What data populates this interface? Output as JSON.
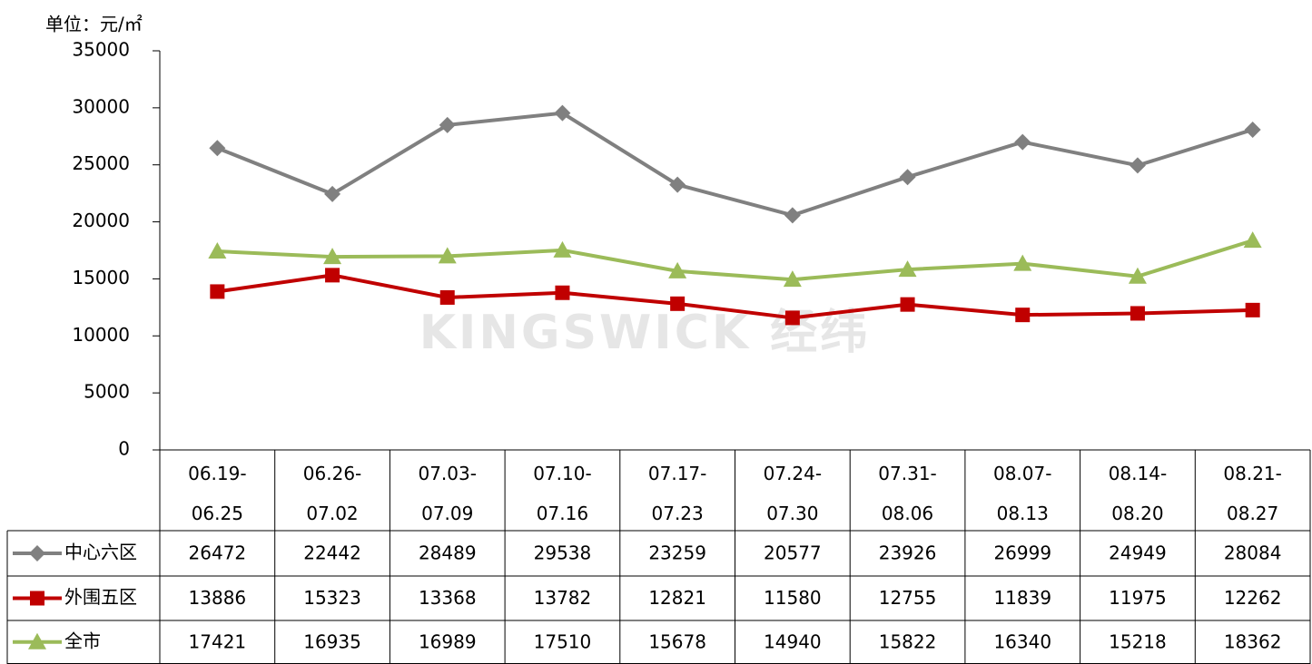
{
  "chart_data": {
    "type": "line",
    "y_axis_label": "单位：元/㎡",
    "watermark": "KINGSWICK 经纬",
    "categories": [
      "06.19-06.25",
      "06.26-07.02",
      "07.03-07.09",
      "07.10-07.16",
      "07.17-07.23",
      "07.24-07.30",
      "07.31-08.06",
      "08.07-08.13",
      "08.14-08.20",
      "08.21-08.27"
    ],
    "series": [
      {
        "name": "中心六区",
        "color": "#808080",
        "marker": "diamond",
        "values": [
          26472,
          22442,
          28489,
          29538,
          23259,
          20577,
          23926,
          26999,
          24949,
          28084
        ]
      },
      {
        "name": "外围五区",
        "color": "#c00000",
        "marker": "square",
        "values": [
          13886,
          15323,
          13368,
          13782,
          12821,
          11580,
          12755,
          11839,
          11975,
          12262
        ]
      },
      {
        "name": "全市",
        "color": "#9bbb59",
        "marker": "triangle",
        "values": [
          17421,
          16935,
          16989,
          17510,
          15678,
          14940,
          15822,
          16340,
          15218,
          18362
        ]
      }
    ],
    "ylim": [
      0,
      35000
    ],
    "yticks": [
      0,
      5000,
      10000,
      15000,
      20000,
      25000,
      30000,
      35000
    ],
    "grid": false
  }
}
